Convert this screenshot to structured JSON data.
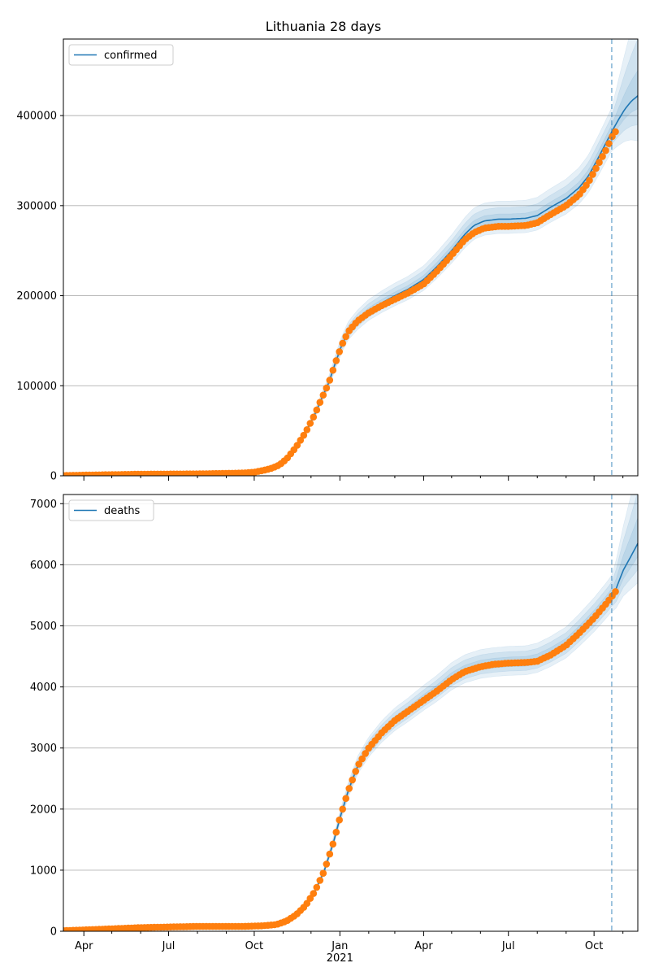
{
  "figure": {
    "title": "Lithuania 28 days",
    "forecast_start_date": "2021-10-20"
  },
  "colors": {
    "model_line": "#1f77b4",
    "band_fill": "#1f77b4",
    "observed_points": "#ff7f0e",
    "forecast_divider": "#1f77b4",
    "grid": "#b0b0b0"
  },
  "chart_data": [
    {
      "type": "line",
      "name": "confirmed-panel",
      "legend": "confirmed",
      "legend_position": "top-left",
      "grid": "horizontal",
      "x_range": [
        "2020-03-10",
        "2021-11-17"
      ],
      "ylim": [
        0,
        485000
      ],
      "y_ticks": [
        0,
        100000,
        200000,
        300000,
        400000
      ],
      "y_tick_labels": [
        "0",
        "100000",
        "200000",
        "300000",
        "400000"
      ],
      "x_tick_labels": [],
      "model_line": {
        "x": [
          "2020-03-10",
          "2020-04-10",
          "2020-06-01",
          "2020-08-01",
          "2020-09-01",
          "2020-09-20",
          "2020-10-01",
          "2020-10-10",
          "2020-10-20",
          "2020-10-28",
          "2020-11-05",
          "2020-11-15",
          "2020-11-25",
          "2020-12-05",
          "2020-12-12",
          "2020-12-20",
          "2020-12-27",
          "2021-01-03",
          "2021-01-10",
          "2021-01-20",
          "2021-02-01",
          "2021-02-15",
          "2021-03-01",
          "2021-03-15",
          "2021-04-01",
          "2021-04-15",
          "2021-05-01",
          "2021-05-15",
          "2021-05-25",
          "2021-06-05",
          "2021-06-20",
          "2021-07-01",
          "2021-07-20",
          "2021-08-01",
          "2021-08-15",
          "2021-09-01",
          "2021-09-15",
          "2021-09-25",
          "2021-10-05",
          "2021-10-15",
          "2021-10-20",
          "2021-10-27",
          "2021-11-03",
          "2021-11-10",
          "2021-11-17"
        ],
        "y": [
          300,
          900,
          1800,
          2100,
          2700,
          3100,
          4000,
          5800,
          8500,
          12000,
          19000,
          32000,
          48000,
          68000,
          85000,
          103000,
          125000,
          145000,
          160000,
          172000,
          183000,
          192000,
          200000,
          207000,
          218000,
          232000,
          250000,
          268000,
          278000,
          283000,
          285000,
          285000,
          286000,
          289000,
          298000,
          308000,
          320000,
          333000,
          352000,
          372000,
          382000,
          395000,
          407000,
          416000,
          422000
        ]
      },
      "observed": {
        "x": [
          "2020-03-10",
          "2020-04-10",
          "2020-06-01",
          "2020-08-01",
          "2020-09-01",
          "2020-09-20",
          "2020-10-01",
          "2020-10-10",
          "2020-10-20",
          "2020-10-28",
          "2020-11-05",
          "2020-11-15",
          "2020-11-25",
          "2020-12-05",
          "2020-12-12",
          "2020-12-20",
          "2020-12-27",
          "2021-01-03",
          "2021-01-10",
          "2021-01-20",
          "2021-02-01",
          "2021-02-15",
          "2021-03-01",
          "2021-03-15",
          "2021-04-01",
          "2021-04-15",
          "2021-05-01",
          "2021-05-15",
          "2021-05-25",
          "2021-06-05",
          "2021-06-20",
          "2021-07-01",
          "2021-07-20",
          "2021-08-01",
          "2021-08-15",
          "2021-09-01",
          "2021-09-15",
          "2021-09-25",
          "2021-10-05",
          "2021-10-15",
          "2021-10-20",
          "2021-10-24"
        ],
        "y": [
          300,
          900,
          1800,
          2100,
          2700,
          3100,
          4000,
          5800,
          8500,
          12000,
          19000,
          32000,
          48000,
          68000,
          85000,
          103000,
          125000,
          145000,
          160000,
          172000,
          181000,
          189000,
          196000,
          203000,
          213000,
          227000,
          245000,
          262000,
          270000,
          275000,
          277000,
          277000,
          278000,
          281000,
          290000,
          300000,
          312000,
          326000,
          345000,
          364000,
          376000,
          382000
        ]
      },
      "band_halfwidths": [
        0.02,
        0.045,
        0.07
      ]
    },
    {
      "type": "line",
      "name": "deaths-panel",
      "legend": "deaths",
      "legend_position": "top-left",
      "grid": "horizontal",
      "x_range": [
        "2020-03-10",
        "2021-11-17"
      ],
      "ylim": [
        0,
        7150
      ],
      "y_ticks": [
        0,
        1000,
        2000,
        3000,
        4000,
        5000,
        6000,
        7000
      ],
      "y_tick_labels": [
        "0",
        "1000",
        "2000",
        "3000",
        "4000",
        "5000",
        "6000",
        "7000"
      ],
      "x_tick_dates": [
        "2020-04-01",
        "2020-07-01",
        "2020-10-01",
        "2021-01-01",
        "2021-04-01",
        "2021-07-01",
        "2021-10-01"
      ],
      "x_tick_labels": [
        "Apr",
        "Jul",
        "Oct",
        "Jan",
        "Apr",
        "Jul",
        "Oct"
      ],
      "x_year_label": "2021",
      "model_line": {
        "x": [
          "2020-03-10",
          "2020-04-15",
          "2020-06-01",
          "2020-08-01",
          "2020-09-20",
          "2020-10-10",
          "2020-10-25",
          "2020-11-05",
          "2020-11-15",
          "2020-11-25",
          "2020-12-05",
          "2020-12-15",
          "2020-12-25",
          "2021-01-01",
          "2021-01-10",
          "2021-01-20",
          "2021-02-01",
          "2021-02-15",
          "2021-03-01",
          "2021-03-15",
          "2021-04-01",
          "2021-04-15",
          "2021-05-01",
          "2021-05-15",
          "2021-06-01",
          "2021-06-15",
          "2021-07-01",
          "2021-07-20",
          "2021-08-01",
          "2021-08-15",
          "2021-09-01",
          "2021-09-15",
          "2021-10-01",
          "2021-10-15",
          "2021-10-24",
          "2021-11-01",
          "2021-11-10",
          "2021-11-17"
        ],
        "y": [
          10,
          30,
          60,
          80,
          80,
          90,
          110,
          170,
          270,
          420,
          650,
          980,
          1450,
          1850,
          2300,
          2700,
          3000,
          3250,
          3450,
          3600,
          3800,
          3950,
          4150,
          4270,
          4350,
          4380,
          4400,
          4410,
          4450,
          4550,
          4700,
          4900,
          5150,
          5400,
          5580,
          5900,
          6150,
          6350
        ]
      },
      "observed": {
        "x": [
          "2020-03-10",
          "2020-04-15",
          "2020-06-01",
          "2020-08-01",
          "2020-09-20",
          "2020-10-10",
          "2020-10-25",
          "2020-11-05",
          "2020-11-15",
          "2020-11-25",
          "2020-12-05",
          "2020-12-15",
          "2020-12-25",
          "2021-01-01",
          "2021-01-10",
          "2021-01-20",
          "2021-02-01",
          "2021-02-15",
          "2021-03-01",
          "2021-03-15",
          "2021-04-01",
          "2021-04-15",
          "2021-05-01",
          "2021-05-15",
          "2021-06-01",
          "2021-06-15",
          "2021-07-01",
          "2021-07-20",
          "2021-08-01",
          "2021-08-15",
          "2021-09-01",
          "2021-09-15",
          "2021-10-01",
          "2021-10-15",
          "2021-10-24"
        ],
        "y": [
          10,
          30,
          60,
          80,
          80,
          90,
          110,
          170,
          270,
          420,
          650,
          980,
          1450,
          1850,
          2300,
          2700,
          3000,
          3250,
          3450,
          3600,
          3780,
          3930,
          4120,
          4250,
          4330,
          4370,
          4390,
          4400,
          4420,
          4520,
          4680,
          4880,
          5130,
          5380,
          5560
        ]
      },
      "band_halfwidths": [
        0.02,
        0.04,
        0.06
      ]
    }
  ]
}
